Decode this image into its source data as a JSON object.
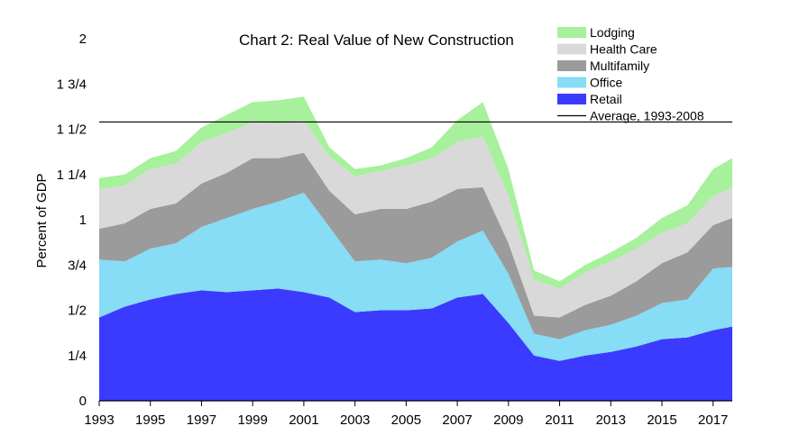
{
  "chart_data": {
    "type": "area",
    "stacked": true,
    "title": "Chart 2: Real Value of New Construction",
    "ylabel": "Percent of GDP",
    "xlabel": "",
    "xlim": [
      1993,
      2017.75
    ],
    "ylim": [
      0,
      2
    ],
    "y_ticks": [
      {
        "value": 0,
        "label": "0"
      },
      {
        "value": 0.25,
        "label": "1/4"
      },
      {
        "value": 0.5,
        "label": "1/2"
      },
      {
        "value": 0.75,
        "label": "3/4"
      },
      {
        "value": 1,
        "label": "1"
      },
      {
        "value": 1.25,
        "label": "1 1/4"
      },
      {
        "value": 1.5,
        "label": "1 1/2"
      },
      {
        "value": 1.75,
        "label": "1 3/4"
      },
      {
        "value": 2,
        "label": "2"
      }
    ],
    "x_ticks": [
      {
        "value": 1993,
        "label": "1993"
      },
      {
        "value": 1995,
        "label": "1995"
      },
      {
        "value": 1997,
        "label": "1997"
      },
      {
        "value": 1999,
        "label": "1999"
      },
      {
        "value": 2001,
        "label": "2001"
      },
      {
        "value": 2003,
        "label": "2003"
      },
      {
        "value": 2005,
        "label": "2005"
      },
      {
        "value": 2007,
        "label": "2007"
      },
      {
        "value": 2009,
        "label": "2009"
      },
      {
        "value": 2011,
        "label": "2011"
      },
      {
        "value": 2013,
        "label": "2013"
      },
      {
        "value": 2015,
        "label": "2015"
      },
      {
        "value": 2017,
        "label": "2017"
      }
    ],
    "x": [
      1993,
      1994,
      1995,
      1996,
      1997,
      1998,
      1999,
      2000,
      2001,
      2002,
      2003,
      2004,
      2005,
      2006,
      2007,
      2008,
      2009,
      2010,
      2011,
      2012,
      2013,
      2014,
      2015,
      2016,
      2017,
      2017.75
    ],
    "series": [
      {
        "name": "Retail",
        "color": "#3b3bff",
        "values": [
          0.46,
          0.52,
          0.56,
          0.59,
          0.61,
          0.6,
          0.61,
          0.62,
          0.6,
          0.57,
          0.49,
          0.5,
          0.5,
          0.51,
          0.57,
          0.59,
          0.43,
          0.25,
          0.22,
          0.25,
          0.27,
          0.3,
          0.34,
          0.35,
          0.39,
          0.41
        ]
      },
      {
        "name": "Office",
        "color": "#87dcf6",
        "values": [
          0.32,
          0.25,
          0.28,
          0.28,
          0.35,
          0.41,
          0.45,
          0.48,
          0.55,
          0.39,
          0.28,
          0.28,
          0.26,
          0.28,
          0.31,
          0.35,
          0.27,
          0.12,
          0.12,
          0.14,
          0.15,
          0.17,
          0.2,
          0.21,
          0.34,
          0.33
        ]
      },
      {
        "name": "Multifamily",
        "color": "#9b9b9b",
        "values": [
          0.17,
          0.21,
          0.22,
          0.22,
          0.24,
          0.25,
          0.28,
          0.24,
          0.22,
          0.2,
          0.26,
          0.28,
          0.3,
          0.31,
          0.29,
          0.24,
          0.17,
          0.1,
          0.12,
          0.14,
          0.16,
          0.19,
          0.22,
          0.26,
          0.24,
          0.27
        ]
      },
      {
        "name": "Health Care",
        "color": "#d9d9d9",
        "values": [
          0.22,
          0.21,
          0.22,
          0.22,
          0.23,
          0.22,
          0.2,
          0.19,
          0.18,
          0.19,
          0.21,
          0.21,
          0.24,
          0.24,
          0.26,
          0.28,
          0.26,
          0.2,
          0.16,
          0.18,
          0.19,
          0.18,
          0.17,
          0.16,
          0.16,
          0.17
        ]
      },
      {
        "name": "Lodging",
        "color": "#a7f09c",
        "values": [
          0.06,
          0.06,
          0.06,
          0.07,
          0.08,
          0.1,
          0.11,
          0.13,
          0.13,
          0.05,
          0.04,
          0.03,
          0.04,
          0.06,
          0.12,
          0.19,
          0.15,
          0.05,
          0.04,
          0.04,
          0.05,
          0.06,
          0.08,
          0.1,
          0.15,
          0.16
        ]
      }
    ],
    "reference_lines": [
      {
        "name": "Average, 1993-2008",
        "value": 1.54,
        "color": "#000000"
      }
    ],
    "legend": {
      "placement": "top-right",
      "entries": [
        {
          "label": "Lodging",
          "color": "#a7f09c",
          "kind": "box"
        },
        {
          "label": "Health Care",
          "color": "#d9d9d9",
          "kind": "box"
        },
        {
          "label": "Multifamily",
          "color": "#9b9b9b",
          "kind": "box"
        },
        {
          "label": "Office",
          "color": "#87dcf6",
          "kind": "box"
        },
        {
          "label": "Retail",
          "color": "#3b3bff",
          "kind": "box"
        },
        {
          "label": "Average, 1993-2008",
          "color": "#000000",
          "kind": "line"
        }
      ]
    },
    "grid": false
  }
}
